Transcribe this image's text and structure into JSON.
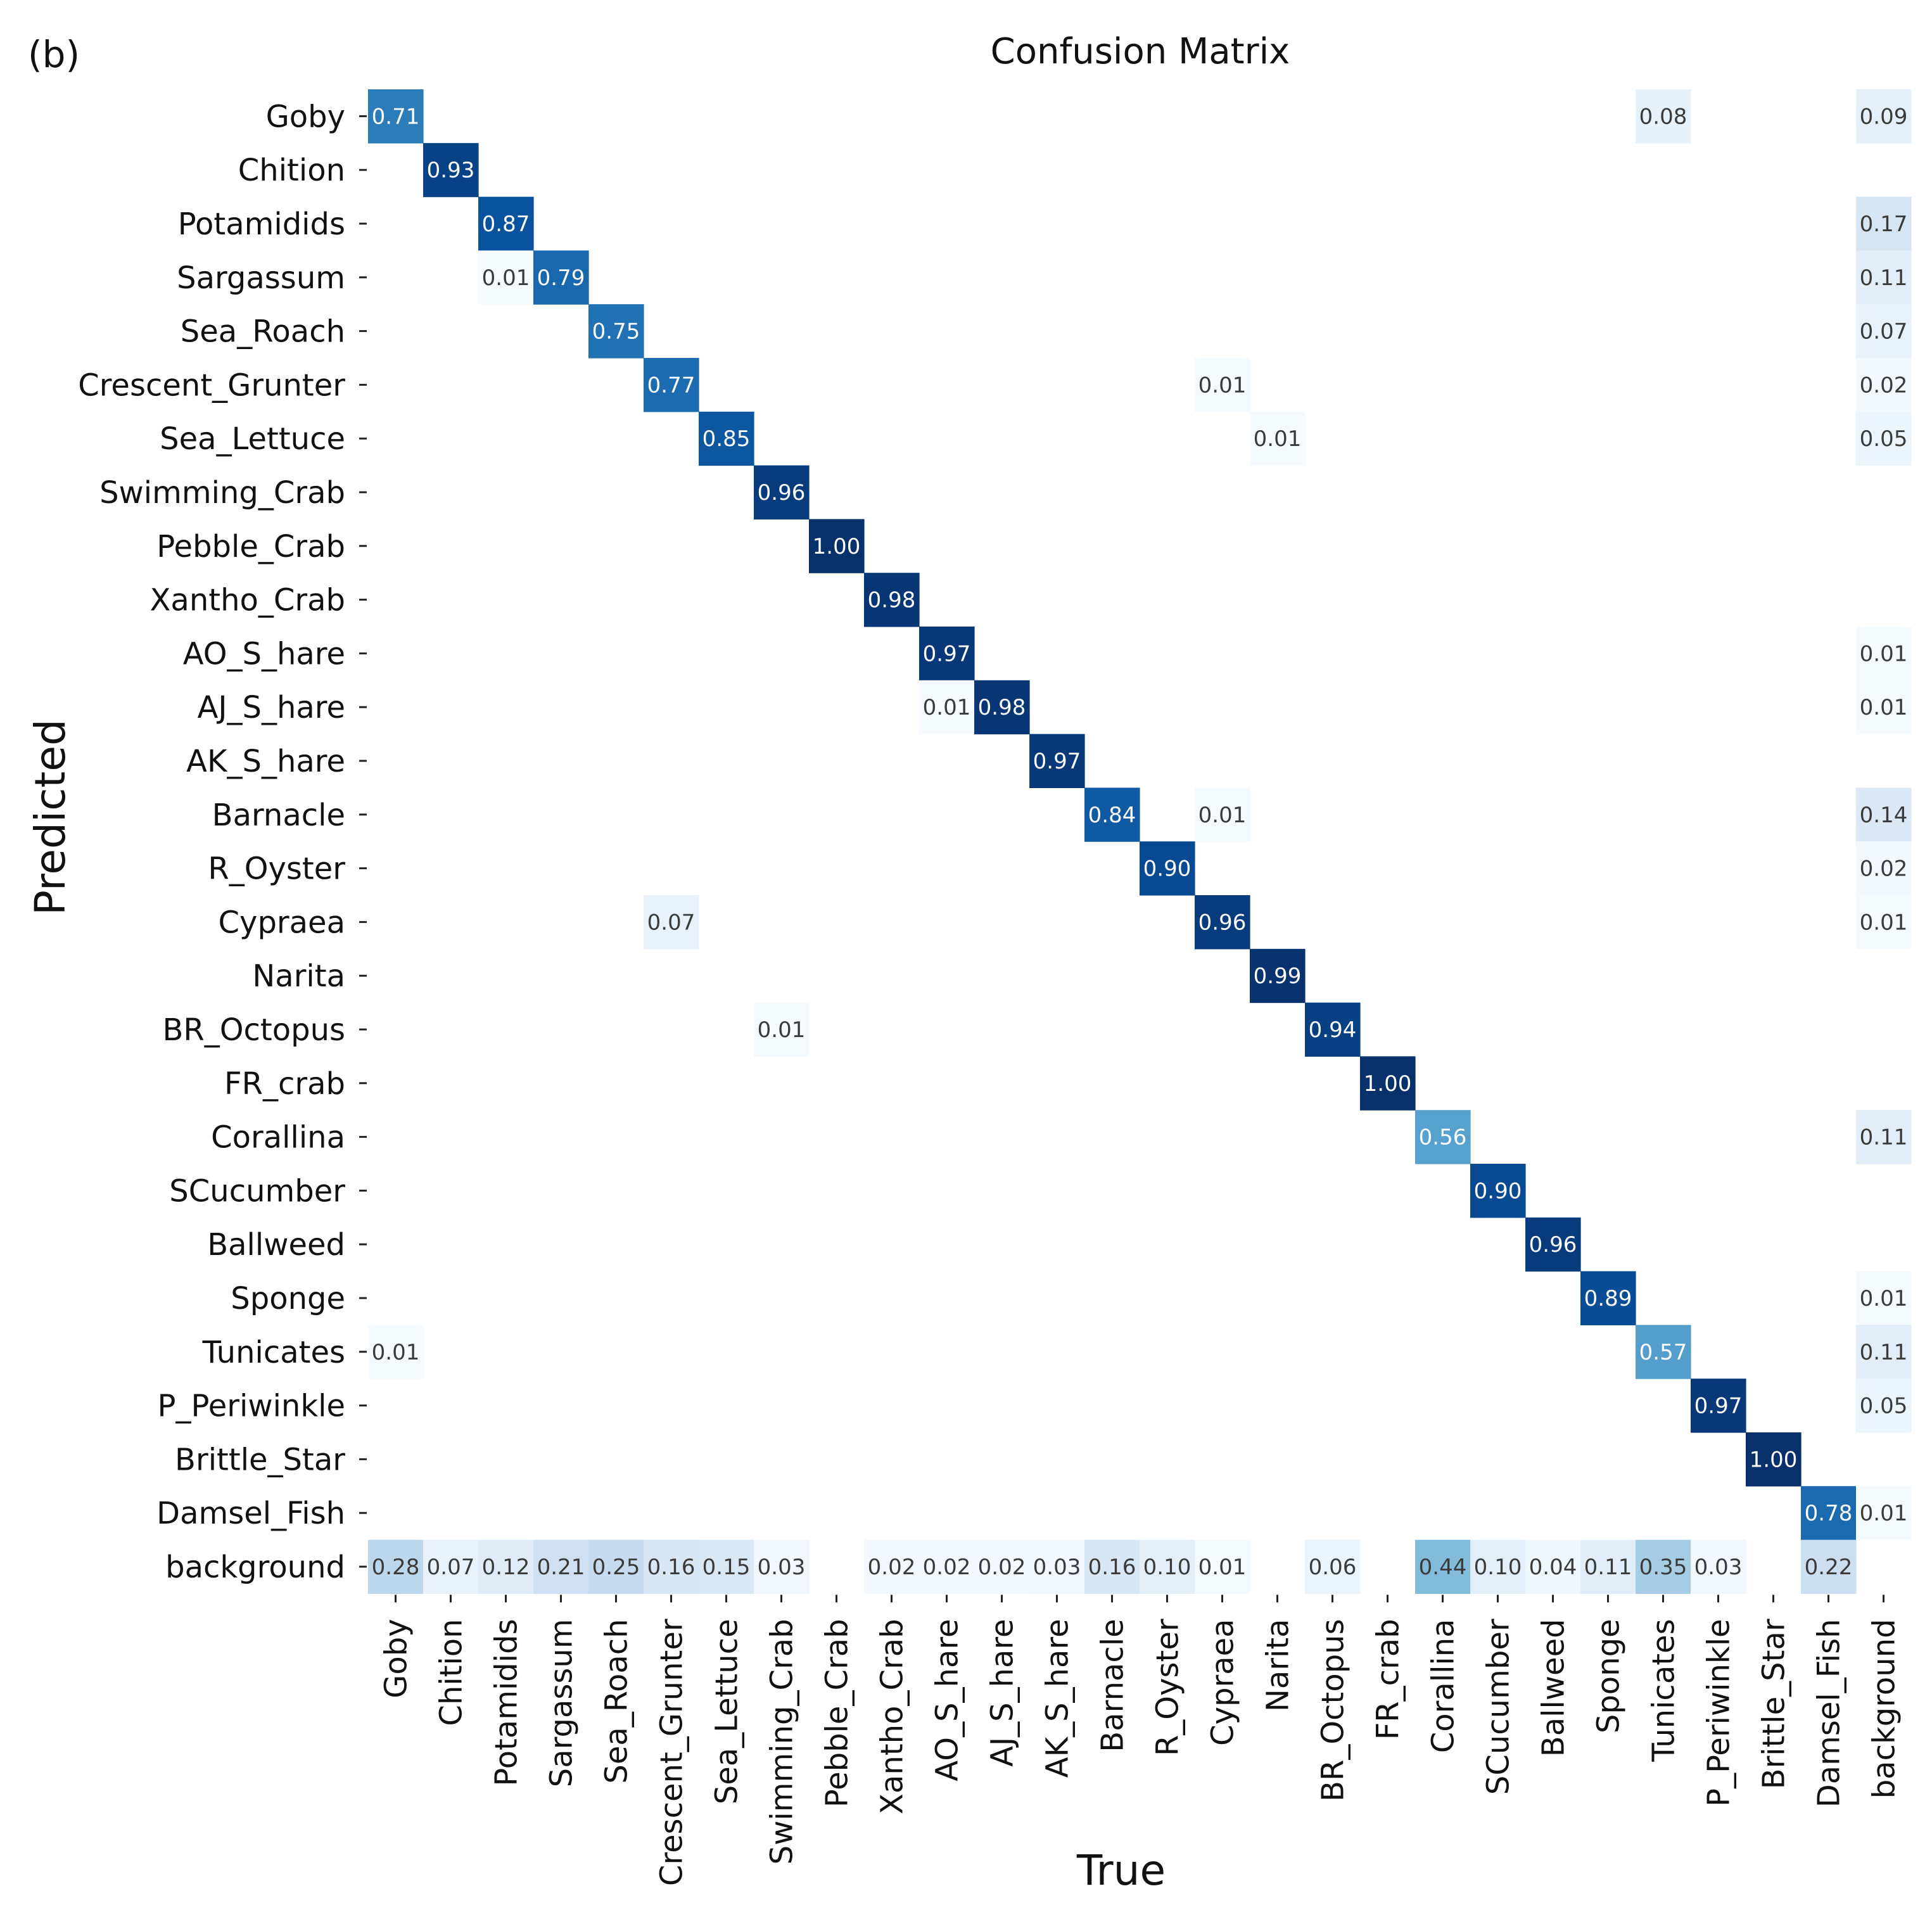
{
  "panel_label": "(b)",
  "chart_data": {
    "type": "heatmap",
    "title": "Confusion Matrix",
    "xlabel": "True",
    "ylabel": "Predicted",
    "colormap": "Blues",
    "value_range": [
      0,
      1
    ],
    "classes": [
      "Goby",
      "Chition",
      "Potamidids",
      "Sargassum",
      "Sea_Roach",
      "Crescent_Grunter",
      "Sea_Lettuce",
      "Swimming_Crab",
      "Pebble_Crab",
      "Xantho_Crab",
      "AO_S_hare",
      "AJ_S_hare",
      "AK_S_hare",
      "Barnacle",
      "R_Oyster",
      "Cypraea",
      "Narita",
      "BR_Octopus",
      "FR_crab",
      "Corallina",
      "SCucumber",
      "Ballweed",
      "Sponge",
      "Tunicates",
      "P_Periwinkle",
      "Brittle_Star",
      "Damsel_Fish",
      "background"
    ],
    "cells": [
      {
        "row": 0,
        "col": 0,
        "value": 0.71,
        "label": "0.71"
      },
      {
        "row": 0,
        "col": 23,
        "value": 0.08,
        "label": "0.08"
      },
      {
        "row": 0,
        "col": 27,
        "value": 0.09,
        "label": "0.09"
      },
      {
        "row": 1,
        "col": 1,
        "value": 0.93,
        "label": "0.93"
      },
      {
        "row": 2,
        "col": 2,
        "value": 0.87,
        "label": "0.87"
      },
      {
        "row": 2,
        "col": 27,
        "value": 0.17,
        "label": "0.17"
      },
      {
        "row": 3,
        "col": 2,
        "value": 0.01,
        "label": "0.01"
      },
      {
        "row": 3,
        "col": 3,
        "value": 0.79,
        "label": "0.79"
      },
      {
        "row": 3,
        "col": 27,
        "value": 0.11,
        "label": "0.11"
      },
      {
        "row": 4,
        "col": 4,
        "value": 0.75,
        "label": "0.75"
      },
      {
        "row": 4,
        "col": 27,
        "value": 0.07,
        "label": "0.07"
      },
      {
        "row": 5,
        "col": 5,
        "value": 0.77,
        "label": "0.77"
      },
      {
        "row": 5,
        "col": 15,
        "value": 0.01,
        "label": "0.01"
      },
      {
        "row": 5,
        "col": 27,
        "value": 0.02,
        "label": "0.02"
      },
      {
        "row": 6,
        "col": 6,
        "value": 0.85,
        "label": "0.85"
      },
      {
        "row": 6,
        "col": 16,
        "value": 0.01,
        "label": "0.01"
      },
      {
        "row": 6,
        "col": 27,
        "value": 0.05,
        "label": "0.05"
      },
      {
        "row": 7,
        "col": 7,
        "value": 0.96,
        "label": "0.96"
      },
      {
        "row": 8,
        "col": 8,
        "value": 1.0,
        "label": "1.00"
      },
      {
        "row": 9,
        "col": 9,
        "value": 0.98,
        "label": "0.98"
      },
      {
        "row": 10,
        "col": 10,
        "value": 0.97,
        "label": "0.97"
      },
      {
        "row": 10,
        "col": 27,
        "value": 0.01,
        "label": "0.01"
      },
      {
        "row": 11,
        "col": 10,
        "value": 0.01,
        "label": "0.01"
      },
      {
        "row": 11,
        "col": 11,
        "value": 0.98,
        "label": "0.98"
      },
      {
        "row": 11,
        "col": 27,
        "value": 0.01,
        "label": "0.01"
      },
      {
        "row": 12,
        "col": 12,
        "value": 0.97,
        "label": "0.97"
      },
      {
        "row": 13,
        "col": 13,
        "value": 0.84,
        "label": "0.84"
      },
      {
        "row": 13,
        "col": 15,
        "value": 0.01,
        "label": "0.01"
      },
      {
        "row": 13,
        "col": 27,
        "value": 0.14,
        "label": "0.14"
      },
      {
        "row": 14,
        "col": 14,
        "value": 0.9,
        "label": "0.90"
      },
      {
        "row": 14,
        "col": 27,
        "value": 0.02,
        "label": "0.02"
      },
      {
        "row": 15,
        "col": 5,
        "value": 0.07,
        "label": "0.07"
      },
      {
        "row": 15,
        "col": 15,
        "value": 0.96,
        "label": "0.96"
      },
      {
        "row": 15,
        "col": 27,
        "value": 0.01,
        "label": "0.01"
      },
      {
        "row": 16,
        "col": 16,
        "value": 0.99,
        "label": "0.99"
      },
      {
        "row": 17,
        "col": 7,
        "value": 0.01,
        "label": "0.01"
      },
      {
        "row": 17,
        "col": 17,
        "value": 0.94,
        "label": "0.94"
      },
      {
        "row": 18,
        "col": 18,
        "value": 1.0,
        "label": "1.00"
      },
      {
        "row": 19,
        "col": 19,
        "value": 0.56,
        "label": "0.56"
      },
      {
        "row": 19,
        "col": 27,
        "value": 0.11,
        "label": "0.11"
      },
      {
        "row": 20,
        "col": 20,
        "value": 0.9,
        "label": "0.90"
      },
      {
        "row": 21,
        "col": 21,
        "value": 0.96,
        "label": "0.96"
      },
      {
        "row": 22,
        "col": 22,
        "value": 0.89,
        "label": "0.89"
      },
      {
        "row": 22,
        "col": 27,
        "value": 0.01,
        "label": "0.01"
      },
      {
        "row": 23,
        "col": 0,
        "value": 0.01,
        "label": "0.01"
      },
      {
        "row": 23,
        "col": 23,
        "value": 0.57,
        "label": "0.57"
      },
      {
        "row": 23,
        "col": 27,
        "value": 0.11,
        "label": "0.11"
      },
      {
        "row": 24,
        "col": 24,
        "value": 0.97,
        "label": "0.97"
      },
      {
        "row": 24,
        "col": 27,
        "value": 0.05,
        "label": "0.05"
      },
      {
        "row": 25,
        "col": 25,
        "value": 1.0,
        "label": "1.00"
      },
      {
        "row": 26,
        "col": 26,
        "value": 0.78,
        "label": "0.78"
      },
      {
        "row": 26,
        "col": 27,
        "value": 0.01,
        "label": "0.01"
      },
      {
        "row": 27,
        "col": 0,
        "value": 0.28,
        "label": "0.28"
      },
      {
        "row": 27,
        "col": 1,
        "value": 0.07,
        "label": "0.07"
      },
      {
        "row": 27,
        "col": 2,
        "value": 0.12,
        "label": "0.12"
      },
      {
        "row": 27,
        "col": 3,
        "value": 0.21,
        "label": "0.21"
      },
      {
        "row": 27,
        "col": 4,
        "value": 0.25,
        "label": "0.25"
      },
      {
        "row": 27,
        "col": 5,
        "value": 0.16,
        "label": "0.16"
      },
      {
        "row": 27,
        "col": 6,
        "value": 0.15,
        "label": "0.15"
      },
      {
        "row": 27,
        "col": 7,
        "value": 0.03,
        "label": "0.03"
      },
      {
        "row": 27,
        "col": 9,
        "value": 0.02,
        "label": "0.02"
      },
      {
        "row": 27,
        "col": 10,
        "value": 0.02,
        "label": "0.02"
      },
      {
        "row": 27,
        "col": 11,
        "value": 0.02,
        "label": "0.02"
      },
      {
        "row": 27,
        "col": 12,
        "value": 0.03,
        "label": "0.03"
      },
      {
        "row": 27,
        "col": 13,
        "value": 0.16,
        "label": "0.16"
      },
      {
        "row": 27,
        "col": 14,
        "value": 0.1,
        "label": "0.10"
      },
      {
        "row": 27,
        "col": 15,
        "value": 0.01,
        "label": "0.01"
      },
      {
        "row": 27,
        "col": 17,
        "value": 0.06,
        "label": "0.06"
      },
      {
        "row": 27,
        "col": 19,
        "value": 0.44,
        "label": "0.44"
      },
      {
        "row": 27,
        "col": 20,
        "value": 0.1,
        "label": "0.10"
      },
      {
        "row": 27,
        "col": 21,
        "value": 0.04,
        "label": "0.04"
      },
      {
        "row": 27,
        "col": 22,
        "value": 0.11,
        "label": "0.11"
      },
      {
        "row": 27,
        "col": 23,
        "value": 0.35,
        "label": "0.35"
      },
      {
        "row": 27,
        "col": 24,
        "value": 0.03,
        "label": "0.03"
      },
      {
        "row": 27,
        "col": 26,
        "value": 0.22,
        "label": "0.22"
      }
    ]
  }
}
